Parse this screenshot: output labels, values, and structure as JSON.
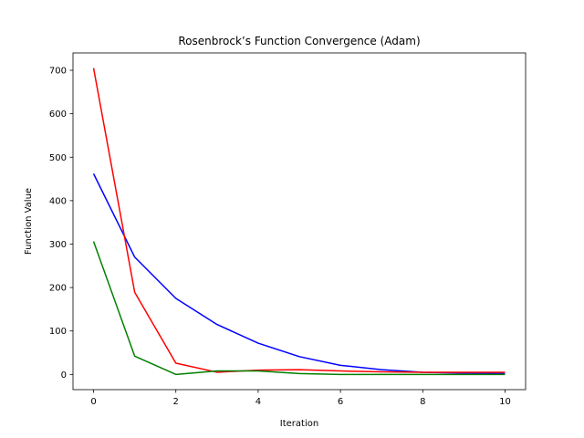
{
  "chart_data": {
    "type": "line",
    "title": "Rosenbrock’s Function Convergence (Adam)",
    "xlabel": "Iteration",
    "ylabel": "Function Value",
    "xlim": [
      -0.5,
      10.5
    ],
    "ylim": [
      -35,
      740
    ],
    "xticks": [
      0,
      2,
      4,
      6,
      8,
      10
    ],
    "yticks": [
      0,
      100,
      200,
      300,
      400,
      500,
      600,
      700
    ],
    "grid": false,
    "x": [
      0,
      1,
      2,
      3,
      4,
      5,
      6,
      7,
      8,
      9,
      10
    ],
    "series": [
      {
        "color": "#0000ff",
        "values": [
          462,
          270,
          175,
          115,
          72,
          41,
          21,
          11,
          5,
          3,
          2
        ]
      },
      {
        "color": "#ff0000",
        "values": [
          705,
          189,
          26,
          5,
          10,
          11,
          8,
          6,
          5,
          5,
          5
        ]
      },
      {
        "color": "#008000",
        "values": [
          306,
          42,
          0,
          8,
          8,
          2,
          0,
          0,
          0,
          0,
          0
        ]
      }
    ]
  }
}
